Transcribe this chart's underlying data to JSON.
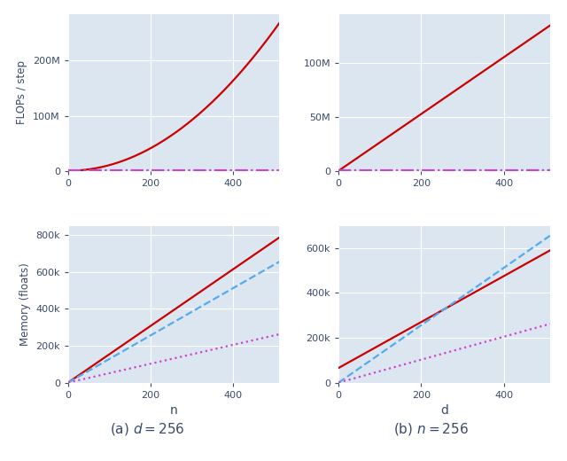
{
  "d_fixed": 256,
  "n_fixed": 256,
  "x_max": 512,
  "bg_color": "#dce6f1",
  "fig_bg": "#ffffff",
  "red_color": "#cc0000",
  "blue_color": "#55aaee",
  "purple_color": "#cc44cc",
  "text_color": "#3a4a6b",
  "xlabel_left": "n",
  "xlabel_right": "d",
  "ylabel_top": "FLOPs / step",
  "ylabel_bottom": "Memory (floats)",
  "caption_left": "(a) $d = 256$",
  "caption_right": "(b) $n = 256$",
  "lw": 1.6
}
